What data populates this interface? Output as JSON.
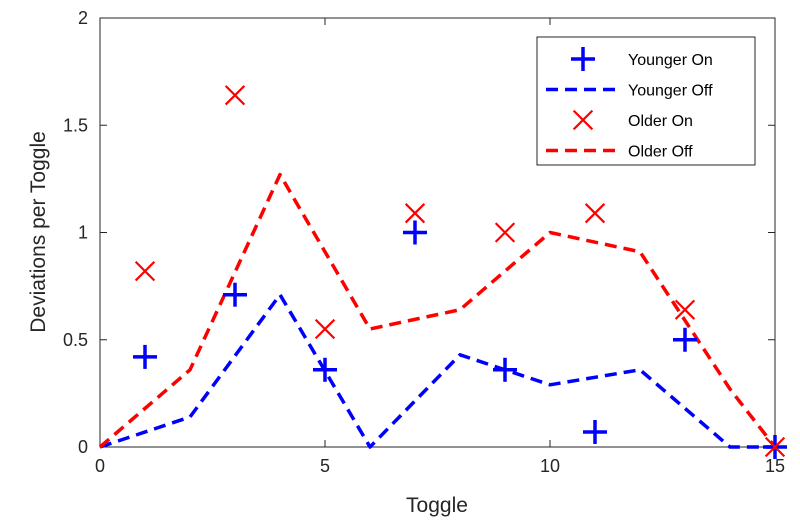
{
  "chart_data": {
    "type": "line",
    "xlabel": "Toggle",
    "ylabel": "Deviations per Toggle",
    "xlim": [
      0,
      15
    ],
    "ylim": [
      0,
      2
    ],
    "xticks": [
      0,
      5,
      10,
      15
    ],
    "yticks": [
      0,
      0.5,
      1,
      1.5,
      2
    ],
    "ytick_labels": [
      "0",
      "0.5",
      "1",
      "1.5",
      "2"
    ],
    "grid": false,
    "legend_position": "top-right",
    "colors": {
      "blue": "#0000ff",
      "red": "#ff0000"
    },
    "series": [
      {
        "name": "Younger On",
        "style": "marker",
        "marker": "plus",
        "color": "#0000ff",
        "x": [
          1,
          3,
          5,
          7,
          9,
          11,
          13,
          15
        ],
        "y": [
          0.42,
          0.71,
          0.36,
          1.0,
          0.36,
          0.07,
          0.5,
          0.0
        ]
      },
      {
        "name": "Younger Off",
        "style": "dashed",
        "color": "#0000ff",
        "x": [
          0,
          2,
          4,
          6,
          8,
          10,
          12,
          14,
          15
        ],
        "y": [
          0.0,
          0.14,
          0.71,
          0.0,
          0.43,
          0.29,
          0.36,
          0.0,
          0.0
        ]
      },
      {
        "name": "Older On",
        "style": "marker",
        "marker": "cross",
        "color": "#ff0000",
        "x": [
          1,
          3,
          5,
          7,
          9,
          11,
          13,
          15
        ],
        "y": [
          0.82,
          1.64,
          0.55,
          1.09,
          1.0,
          1.09,
          0.64,
          0.0
        ]
      },
      {
        "name": "Older Off",
        "style": "dashed",
        "color": "#ff0000",
        "x": [
          0,
          2,
          4,
          6,
          8,
          10,
          12,
          14,
          15
        ],
        "y": [
          0.0,
          0.36,
          1.27,
          0.55,
          0.64,
          1.0,
          0.91,
          0.27,
          0.0
        ]
      }
    ]
  }
}
